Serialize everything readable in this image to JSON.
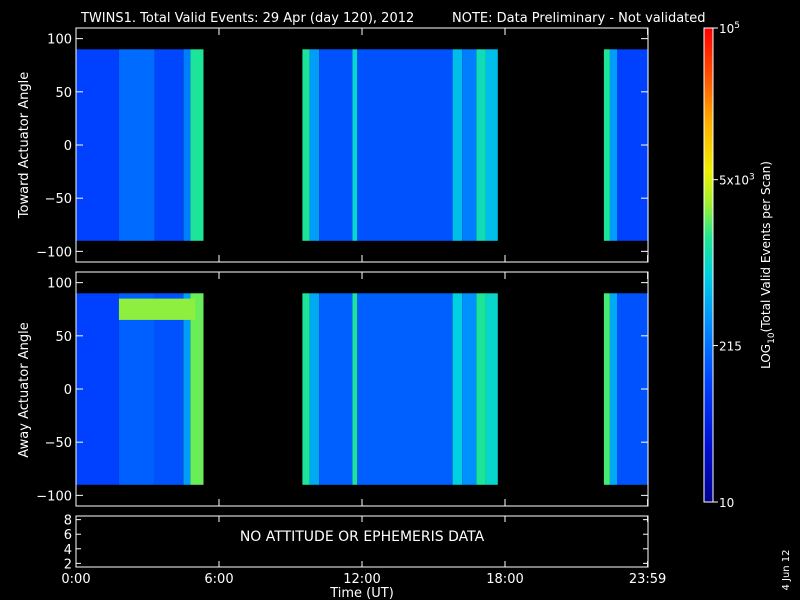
{
  "title": {
    "main": "TWINS1. Total Valid Events: 29 Apr (day 120), 2012",
    "note": "NOTE: Data Preliminary - Not validated",
    "note_color": "#ff2020"
  },
  "footer": {
    "date_stamp": "4 Jun 12",
    "message": "NO ATTITUDE OR EPHEMERIS DATA"
  },
  "chart_data": [
    {
      "type": "heatmap",
      "name": "toward-panel",
      "ylabel": "Toward Actuator Angle",
      "ylim": [
        -110,
        110
      ],
      "y_range_data": [
        -90,
        90
      ],
      "yticks": [
        100,
        50,
        0,
        -50,
        -100
      ],
      "ytick_labels": [
        "100",
        "50",
        "0",
        "−50",
        "−100"
      ],
      "xlim_hours": [
        0,
        24
      ],
      "segments": [
        {
          "start": 0.0,
          "end": 1.8,
          "level": 0.25
        },
        {
          "start": 1.8,
          "end": 3.3,
          "level": 0.32
        },
        {
          "start": 3.3,
          "end": 4.5,
          "level": 0.26
        },
        {
          "start": 4.5,
          "end": 4.8,
          "level": 0.35
        },
        {
          "start": 4.8,
          "end": 5.35,
          "level": 0.55
        },
        {
          "start": 9.5,
          "end": 9.8,
          "level": 0.55
        },
        {
          "start": 9.8,
          "end": 10.2,
          "level": 0.4
        },
        {
          "start": 10.2,
          "end": 11.6,
          "level": 0.28
        },
        {
          "start": 11.6,
          "end": 11.8,
          "level": 0.5
        },
        {
          "start": 11.8,
          "end": 15.8,
          "level": 0.28
        },
        {
          "start": 15.8,
          "end": 16.2,
          "level": 0.45
        },
        {
          "start": 16.2,
          "end": 16.8,
          "level": 0.35
        },
        {
          "start": 16.8,
          "end": 17.2,
          "level": 0.52
        },
        {
          "start": 17.2,
          "end": 17.7,
          "level": 0.45
        },
        {
          "start": 22.15,
          "end": 22.4,
          "level": 0.55
        },
        {
          "start": 22.4,
          "end": 22.7,
          "level": 0.4
        },
        {
          "start": 22.7,
          "end": 23.98,
          "level": 0.25
        }
      ]
    },
    {
      "type": "heatmap",
      "name": "away-panel",
      "ylabel": "Away Actuator Angle",
      "ylim": [
        -110,
        110
      ],
      "y_range_data": [
        -90,
        90
      ],
      "yticks": [
        100,
        50,
        0,
        -50,
        -100
      ],
      "ytick_labels": [
        "100",
        "50",
        "0",
        "−50",
        "−100"
      ],
      "xlim_hours": [
        0,
        24
      ],
      "segments": [
        {
          "start": 0.0,
          "end": 1.8,
          "level": 0.25
        },
        {
          "start": 1.8,
          "end": 3.3,
          "level": 0.3
        },
        {
          "start": 3.3,
          "end": 4.5,
          "level": 0.28
        },
        {
          "start": 4.5,
          "end": 4.8,
          "level": 0.4
        },
        {
          "start": 4.8,
          "end": 5.35,
          "level": 0.6
        },
        {
          "start": 9.5,
          "end": 9.8,
          "level": 0.55
        },
        {
          "start": 9.8,
          "end": 10.2,
          "level": 0.42
        },
        {
          "start": 10.2,
          "end": 11.6,
          "level": 0.3
        },
        {
          "start": 11.6,
          "end": 11.8,
          "level": 0.55
        },
        {
          "start": 11.8,
          "end": 15.8,
          "level": 0.3
        },
        {
          "start": 15.8,
          "end": 16.2,
          "level": 0.48
        },
        {
          "start": 16.2,
          "end": 16.8,
          "level": 0.38
        },
        {
          "start": 16.8,
          "end": 17.2,
          "level": 0.55
        },
        {
          "start": 17.2,
          "end": 17.7,
          "level": 0.5
        },
        {
          "start": 22.15,
          "end": 22.4,
          "level": 0.58
        },
        {
          "start": 22.4,
          "end": 22.7,
          "level": 0.42
        },
        {
          "start": 22.7,
          "end": 23.98,
          "level": 0.28
        }
      ],
      "band": {
        "start": 1.8,
        "end": 5.0,
        "y_low": 65,
        "y_high": 85,
        "level": 0.62
      }
    },
    {
      "type": "line",
      "name": "attitude-panel",
      "ylim": [
        1.5,
        8.5
      ],
      "yticks": [
        8,
        6,
        4,
        2
      ],
      "ytick_labels": [
        "8",
        "6",
        "4",
        "2"
      ]
    }
  ],
  "xaxis": {
    "label": "Time (UT)",
    "ticks_hours": [
      0,
      6,
      12,
      18,
      23.983
    ],
    "tick_labels": [
      "0:00",
      "6:00",
      "12:00",
      "18:00",
      "23:59"
    ]
  },
  "colorbar": {
    "label": "LOG10(Total Valid Events per Scan)",
    "label_main": "LOG",
    "label_sub": "10",
    "label_rest": "(Total Valid Events per Scan)",
    "ticks": [
      {
        "value": 10,
        "text": "10",
        "pos": 0.0
      },
      {
        "value": 215,
        "text": "215",
        "pos": 0.33
      },
      {
        "value": 5000,
        "text": "5x10",
        "sup": "3",
        "pos": 0.68
      },
      {
        "value": 100000,
        "text": "10",
        "sup": "5",
        "pos": 1.0
      }
    ]
  }
}
